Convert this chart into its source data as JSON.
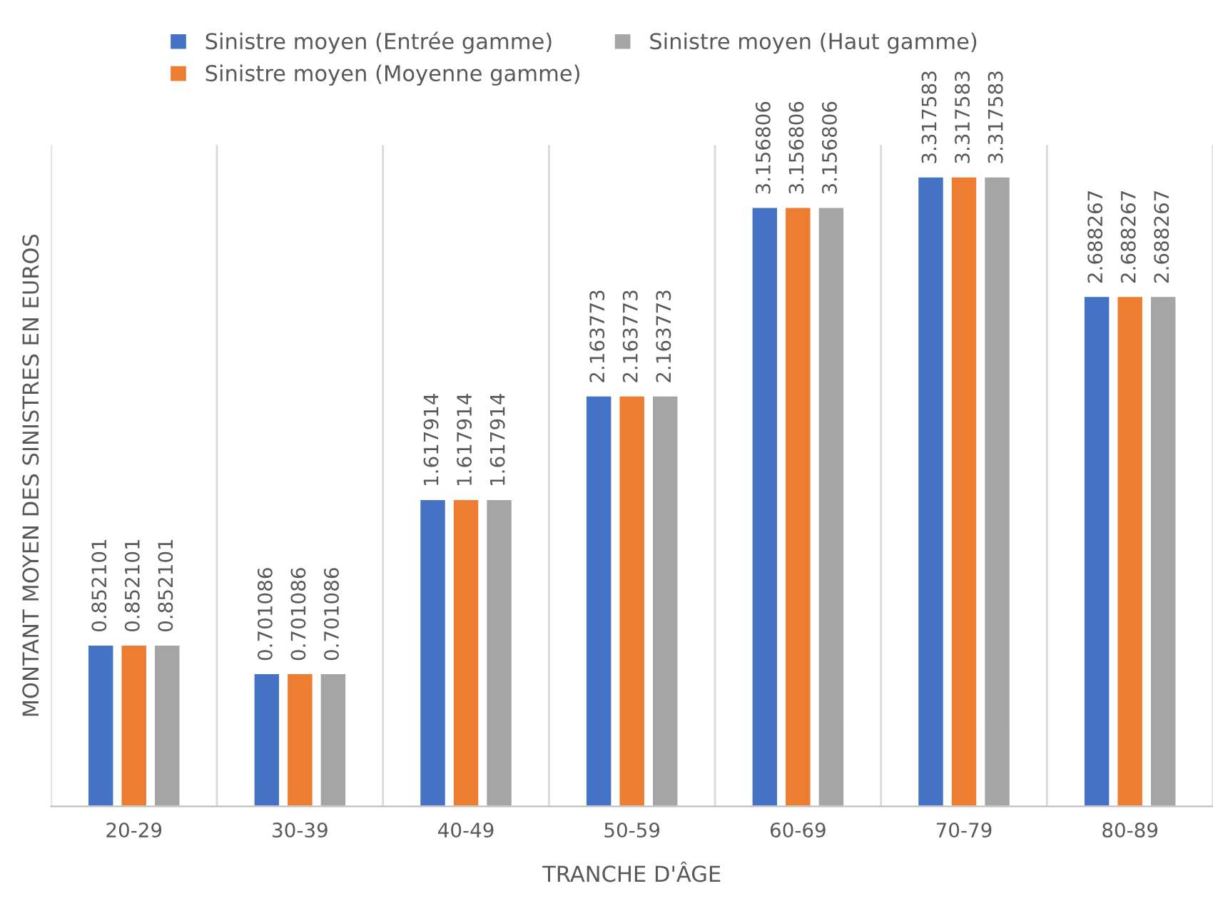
{
  "chart_data": {
    "type": "bar",
    "xlabel": "TRANCHE D'ÂGE",
    "ylabel": "MONTANT MOYEN DES SINISTRES EN EUROS",
    "categories": [
      "20-29",
      "30-39",
      "40-49",
      "50-59",
      "60-69",
      "70-79",
      "80-89"
    ],
    "series": [
      {
        "name": "Sinistre moyen (Entrée gamme)",
        "color": "#4472c4",
        "values": [
          0.852101,
          0.701086,
          1.617914,
          2.163773,
          3.156806,
          3.317583,
          2.688267
        ]
      },
      {
        "name": "Sinistre moyen (Moyenne gamme)",
        "color": "#ed7d31",
        "values": [
          0.852101,
          0.701086,
          1.617914,
          2.163773,
          3.156806,
          3.317583,
          2.688267
        ]
      },
      {
        "name": "Sinistre moyen (Haut gamme)",
        "color": "#a5a5a5",
        "values": [
          0.852101,
          0.701086,
          1.617914,
          2.163773,
          3.156806,
          3.317583,
          2.688267
        ]
      }
    ],
    "data_labels": true,
    "grid": "x",
    "legend": "top",
    "tick_labels": "x"
  }
}
